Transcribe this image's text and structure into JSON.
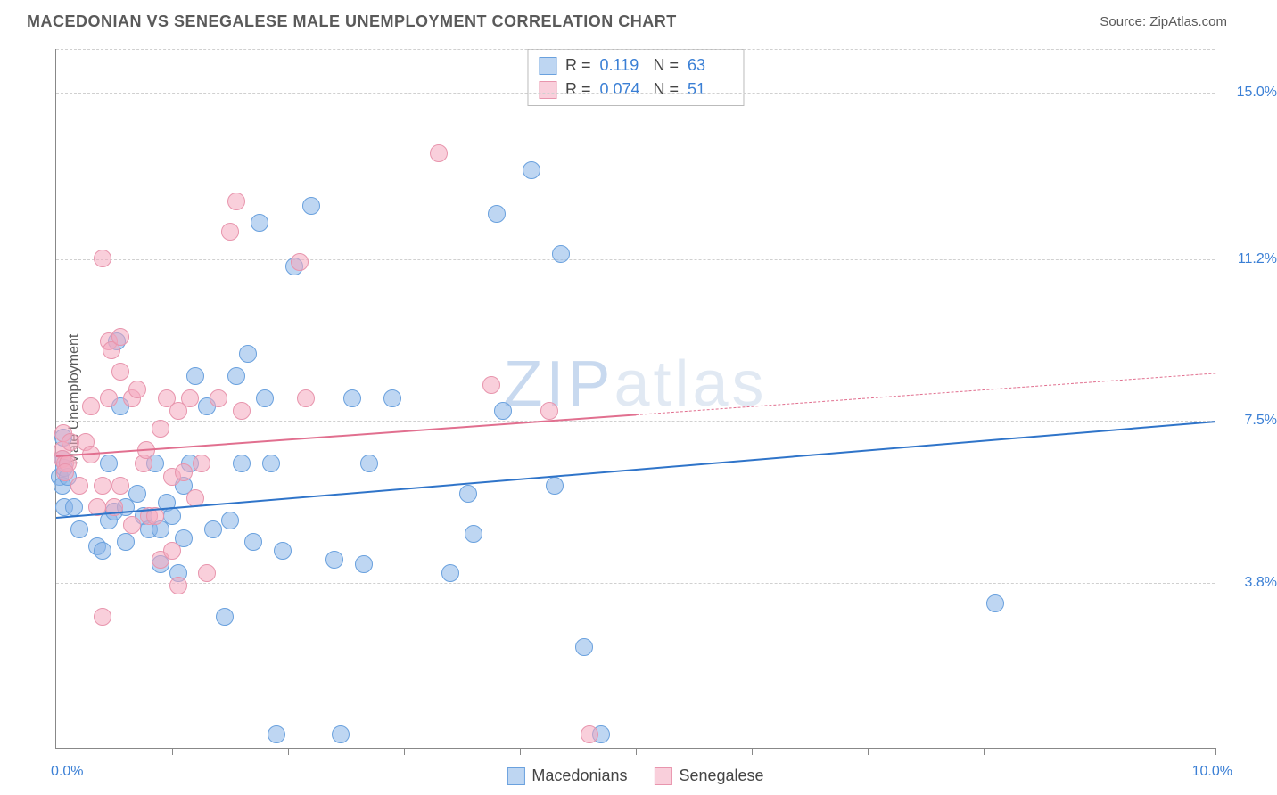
{
  "header": {
    "title": "MACEDONIAN VS SENEGALESE MALE UNEMPLOYMENT CORRELATION CHART",
    "source_prefix": "Source: ",
    "source_name": "ZipAtlas.com"
  },
  "watermark": {
    "part1": "ZIP",
    "part2": "atlas",
    "color1": "#c8d9ef",
    "color2": "#e1e9f3"
  },
  "chart": {
    "type": "scatter",
    "yaxis_label": "Male Unemployment",
    "background_color": "#ffffff",
    "grid_color": "#d0d0d0",
    "axis_color": "#888888",
    "label_color": "#3a7fd5",
    "xlim": [
      0,
      10
    ],
    "ylim": [
      0,
      16
    ],
    "y_gridlines": [
      3.8,
      7.5,
      11.2,
      15.0
    ],
    "y_tick_labels": [
      "3.8%",
      "7.5%",
      "11.2%",
      "15.0%"
    ],
    "x_ticks": [
      1,
      2,
      3,
      4,
      5,
      6,
      7,
      8,
      9,
      10
    ],
    "x_corner_left": "0.0%",
    "x_corner_right": "10.0%",
    "point_radius": 10,
    "series": [
      {
        "name": "Macedonians",
        "fill": "rgba(137,181,232,0.55)",
        "stroke": "#6aa1de",
        "trend_color": "#2f74c9",
        "trend": {
          "x1": 0,
          "y1": 5.3,
          "x2": 10,
          "y2": 7.5,
          "dashed_from_x": null
        },
        "stats": {
          "R": "0.119",
          "N": "63"
        },
        "points": [
          [
            0.03,
            6.2
          ],
          [
            0.05,
            6.0
          ],
          [
            0.05,
            6.6
          ],
          [
            0.07,
            6.4
          ],
          [
            0.07,
            5.5
          ],
          [
            0.06,
            7.1
          ],
          [
            0.1,
            6.2
          ],
          [
            0.15,
            5.5
          ],
          [
            0.2,
            5.0
          ],
          [
            0.35,
            4.6
          ],
          [
            0.4,
            4.5
          ],
          [
            0.45,
            6.5
          ],
          [
            0.45,
            5.2
          ],
          [
            0.5,
            5.4
          ],
          [
            0.52,
            9.3
          ],
          [
            0.55,
            7.8
          ],
          [
            0.6,
            4.7
          ],
          [
            0.6,
            5.5
          ],
          [
            0.7,
            5.8
          ],
          [
            0.75,
            5.3
          ],
          [
            0.8,
            5.0
          ],
          [
            0.85,
            6.5
          ],
          [
            0.9,
            4.2
          ],
          [
            0.9,
            5.0
          ],
          [
            0.95,
            5.6
          ],
          [
            1.0,
            5.3
          ],
          [
            1.05,
            4.0
          ],
          [
            1.1,
            4.8
          ],
          [
            1.1,
            6.0
          ],
          [
            1.15,
            6.5
          ],
          [
            1.2,
            8.5
          ],
          [
            1.3,
            7.8
          ],
          [
            1.35,
            5.0
          ],
          [
            1.45,
            3.0
          ],
          [
            1.5,
            5.2
          ],
          [
            1.55,
            8.5
          ],
          [
            1.6,
            6.5
          ],
          [
            1.65,
            9.0
          ],
          [
            1.7,
            4.7
          ],
          [
            1.75,
            12.0
          ],
          [
            1.8,
            8.0
          ],
          [
            1.85,
            6.5
          ],
          [
            1.9,
            0.3
          ],
          [
            1.95,
            4.5
          ],
          [
            2.05,
            11.0
          ],
          [
            2.2,
            12.4
          ],
          [
            2.4,
            4.3
          ],
          [
            2.45,
            0.3
          ],
          [
            2.55,
            8.0
          ],
          [
            2.65,
            4.2
          ],
          [
            2.7,
            6.5
          ],
          [
            2.9,
            8.0
          ],
          [
            3.4,
            4.0
          ],
          [
            3.55,
            5.8
          ],
          [
            3.6,
            4.9
          ],
          [
            3.8,
            12.2
          ],
          [
            3.85,
            7.7
          ],
          [
            4.1,
            13.2
          ],
          [
            4.3,
            6.0
          ],
          [
            4.35,
            11.3
          ],
          [
            4.55,
            2.3
          ],
          [
            4.7,
            0.3
          ],
          [
            8.1,
            3.3
          ]
        ]
      },
      {
        "name": "Senegalese",
        "fill": "rgba(244,168,189,0.55)",
        "stroke": "#e895ad",
        "trend_color": "#e16f8f",
        "trend": {
          "x1": 0,
          "y1": 6.7,
          "x2": 10,
          "y2": 8.6,
          "dashed_from_x": 5.0
        },
        "stats": {
          "R": "0.074",
          "N": "51"
        },
        "points": [
          [
            0.05,
            6.8
          ],
          [
            0.05,
            6.6
          ],
          [
            0.06,
            7.2
          ],
          [
            0.08,
            6.5
          ],
          [
            0.1,
            6.5
          ],
          [
            0.12,
            7.0
          ],
          [
            0.08,
            6.3
          ],
          [
            0.2,
            6.0
          ],
          [
            0.25,
            7.0
          ],
          [
            0.3,
            6.7
          ],
          [
            0.3,
            7.8
          ],
          [
            0.35,
            5.5
          ],
          [
            0.4,
            6.0
          ],
          [
            0.4,
            3.0
          ],
          [
            0.4,
            11.2
          ],
          [
            0.45,
            9.3
          ],
          [
            0.45,
            8.0
          ],
          [
            0.48,
            9.1
          ],
          [
            0.5,
            5.5
          ],
          [
            0.55,
            6.0
          ],
          [
            0.55,
            8.6
          ],
          [
            0.55,
            9.4
          ],
          [
            0.65,
            5.1
          ],
          [
            0.65,
            8.0
          ],
          [
            0.7,
            8.2
          ],
          [
            0.75,
            6.5
          ],
          [
            0.78,
            6.8
          ],
          [
            0.8,
            5.3
          ],
          [
            0.85,
            5.3
          ],
          [
            0.9,
            4.3
          ],
          [
            0.9,
            7.3
          ],
          [
            0.95,
            8.0
          ],
          [
            1.0,
            4.5
          ],
          [
            1.0,
            6.2
          ],
          [
            1.05,
            7.7
          ],
          [
            1.05,
            3.7
          ],
          [
            1.1,
            6.3
          ],
          [
            1.15,
            8.0
          ],
          [
            1.2,
            5.7
          ],
          [
            1.25,
            6.5
          ],
          [
            1.3,
            4.0
          ],
          [
            1.4,
            8.0
          ],
          [
            1.5,
            11.8
          ],
          [
            1.55,
            12.5
          ],
          [
            1.6,
            7.7
          ],
          [
            2.1,
            11.1
          ],
          [
            2.15,
            8.0
          ],
          [
            3.3,
            13.6
          ],
          [
            3.75,
            8.3
          ],
          [
            4.25,
            7.7
          ],
          [
            4.6,
            0.3
          ]
        ]
      }
    ],
    "stats_box": {
      "R_label": "R  =",
      "N_label": "N  ="
    },
    "legend_labels": [
      "Macedonians",
      "Senegalese"
    ]
  }
}
